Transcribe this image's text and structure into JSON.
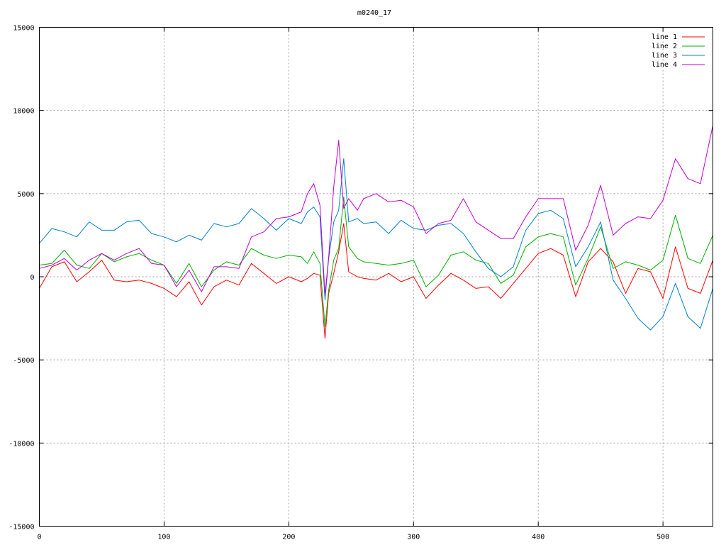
{
  "chart_data": {
    "type": "line",
    "title": "m0240_17",
    "xlabel": "",
    "ylabel": "",
    "xlim": [
      0,
      540
    ],
    "ylim": [
      -15000,
      15000
    ],
    "xticks": [
      0,
      100,
      200,
      300,
      400,
      500
    ],
    "yticks": [
      -15000,
      -10000,
      -5000,
      0,
      5000,
      10000,
      15000
    ],
    "grid": true,
    "legend_position": "top-right",
    "x": [
      0,
      10,
      20,
      30,
      40,
      50,
      60,
      70,
      80,
      90,
      100,
      110,
      120,
      130,
      140,
      150,
      160,
      170,
      180,
      190,
      200,
      210,
      215,
      220,
      225,
      229,
      232,
      236,
      240,
      244,
      248,
      255,
      260,
      270,
      280,
      290,
      300,
      310,
      320,
      330,
      340,
      350,
      360,
      370,
      380,
      390,
      400,
      410,
      420,
      430,
      440,
      450,
      460,
      470,
      480,
      490,
      500,
      510,
      520,
      530,
      540
    ],
    "series": [
      {
        "name": "line 1",
        "color": "#ff0000",
        "values": [
          -700,
          600,
          900,
          -300,
          300,
          1000,
          -200,
          -300,
          -200,
          -400,
          -700,
          -1200,
          -300,
          -1700,
          -600,
          -200,
          -500,
          800,
          200,
          -400,
          0,
          -300,
          -100,
          200,
          100,
          -3700,
          -1000,
          200,
          1500,
          3200,
          300,
          0,
          -100,
          -200,
          200,
          -300,
          0,
          -1300,
          -500,
          200,
          -200,
          -700,
          -600,
          -1300,
          -400,
          500,
          1400,
          1700,
          1300,
          -1200,
          900,
          1700,
          900,
          -1000,
          500,
          300,
          -1300,
          1800,
          -700,
          -1000,
          1000
        ]
      },
      {
        "name": "line 2",
        "color": "#00b000",
        "values": [
          700,
          800,
          1600,
          700,
          500,
          1400,
          900,
          1200,
          1400,
          1000,
          700,
          -400,
          800,
          -600,
          400,
          900,
          700,
          1700,
          1300,
          1100,
          1300,
          1200,
          800,
          1500,
          800,
          -3000,
          -800,
          1000,
          1700,
          4800,
          1800,
          1100,
          900,
          800,
          700,
          800,
          1000,
          -600,
          100,
          1300,
          1500,
          1000,
          800,
          -400,
          100,
          1800,
          2400,
          2600,
          2400,
          -500,
          1100,
          3000,
          500,
          900,
          700,
          400,
          1000,
          3700,
          1100,
          800,
          2500
        ]
      },
      {
        "name": "line 3",
        "color": "#0080d0",
        "values": [
          2000,
          2900,
          2700,
          2400,
          3300,
          2800,
          2800,
          3300,
          3400,
          2600,
          2400,
          2100,
          2500,
          2200,
          3200,
          3000,
          3200,
          4100,
          3500,
          2800,
          3500,
          3200,
          3900,
          4200,
          3600,
          -1400,
          1100,
          3300,
          4000,
          7100,
          3300,
          3500,
          3200,
          3300,
          2600,
          3400,
          2900,
          2800,
          3100,
          3200,
          2600,
          1500,
          500,
          0,
          600,
          2800,
          3800,
          4000,
          3500,
          600,
          1800,
          3300,
          -200,
          -1300,
          -2500,
          -3200,
          -2400,
          -400,
          -2400,
          -3100,
          -700
        ]
      },
      {
        "name": "line 4",
        "color": "#c000d0",
        "values": [
          500,
          700,
          1100,
          400,
          1000,
          1400,
          1000,
          1400,
          1700,
          800,
          700,
          -600,
          400,
          -900,
          600,
          600,
          500,
          2400,
          2700,
          3500,
          3600,
          3900,
          5000,
          5600,
          4300,
          -1100,
          1200,
          5400,
          8200,
          4100,
          4700,
          4000,
          4700,
          5000,
          4500,
          4600,
          4200,
          2600,
          3200,
          3400,
          4700,
          3300,
          2800,
          2300,
          2300,
          3600,
          4700,
          4700,
          4700,
          1600,
          3100,
          5500,
          2500,
          3200,
          3600,
          3500,
          4600,
          7100,
          5900,
          5600,
          9100
        ]
      }
    ]
  }
}
